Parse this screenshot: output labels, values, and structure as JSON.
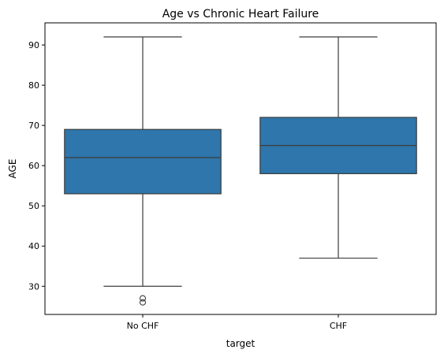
{
  "chart_data": {
    "type": "boxplot",
    "title": "Age vs Chronic Heart Failure",
    "xlabel": "target",
    "ylabel": "AGE",
    "ylim": [
      23,
      95.5
    ],
    "yticks": [
      30,
      40,
      50,
      60,
      70,
      80,
      90
    ],
    "grid": false,
    "legend": "none",
    "box_color": "#2e76ab",
    "line_color": "#3d3d3d",
    "categories": [
      "No CHF",
      "CHF"
    ],
    "boxes": [
      {
        "category": "No CHF",
        "whisker_low": 30,
        "q1": 53,
        "median": 62,
        "q3": 69,
        "whisker_high": 92,
        "outliers": [
          27,
          26
        ]
      },
      {
        "category": "CHF",
        "whisker_low": 37,
        "q1": 58,
        "median": 65,
        "q3": 72,
        "whisker_high": 92,
        "outliers": []
      }
    ]
  }
}
